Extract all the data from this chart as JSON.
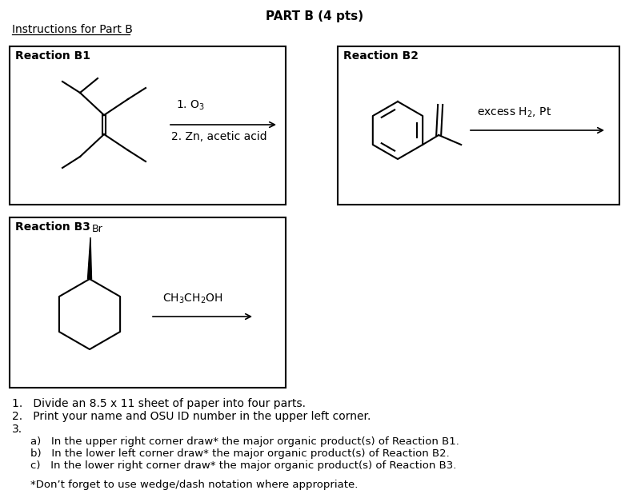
{
  "title": "PART B (4 pts)",
  "subtitle": "Instructions for Part B",
  "bg_color": "#ffffff",
  "text_color": "#000000",
  "reaction_b1_label": "Reaction B1",
  "reaction_b2_label": "Reaction B2",
  "reaction_b3_label": "Reaction B3"
}
